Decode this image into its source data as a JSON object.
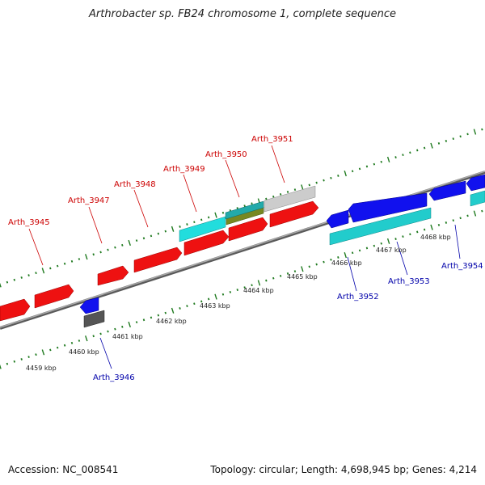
{
  "title": "Arthrobacter sp. FB24 chromosome 1, complete sequence",
  "accession": "Accession: NC_008541",
  "topology": "Topology: circular; Length: 4,698,945 bp; Genes: 4,214",
  "colors": {
    "forward_label": "#cc0000",
    "reverse_label": "#0000aa",
    "scale_ticks": "#1f7a1f",
    "backbone": "#888888",
    "red_gene": "#ee1111",
    "blue_gene": "#1111ee",
    "cyan_gene": "#22cccc",
    "gray_gene": "#cccccc",
    "olive_gene": "#778822",
    "dark_gray_gene": "#555555"
  },
  "scale_labels": [
    {
      "id": "4459",
      "text": "4459 kbp"
    },
    {
      "id": "4460",
      "text": "4460 kbp"
    },
    {
      "id": "4461",
      "text": "4461 kbp"
    },
    {
      "id": "4462",
      "text": "4462 kbp"
    },
    {
      "id": "4463",
      "text": "4463 kbp"
    },
    {
      "id": "4464",
      "text": "4464 kbp"
    },
    {
      "id": "4465",
      "text": "4465 kbp"
    },
    {
      "id": "4466",
      "text": "4466 kbp"
    },
    {
      "id": "4467",
      "text": "4467 kbp"
    },
    {
      "id": "4468",
      "text": "4468 kbp"
    }
  ],
  "genes_forward": [
    "Arth_3945",
    "Arth_3947",
    "Arth_3948",
    "Arth_3949",
    "Arth_3950",
    "Arth_3951"
  ],
  "genes_reverse": [
    "Arth_3946",
    "Arth_3952",
    "Arth_3953",
    "Arth_3954"
  ]
}
